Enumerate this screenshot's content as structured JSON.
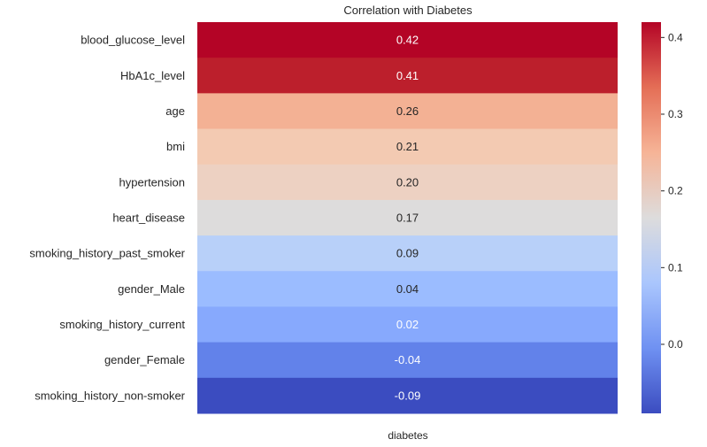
{
  "chart_data": {
    "type": "heatmap",
    "title": "Correlation with Diabetes",
    "xlabel": "",
    "ylabel": "",
    "columns": [
      "diabetes"
    ],
    "rows": [
      "blood_glucose_level",
      "HbA1c_level",
      "age",
      "bmi",
      "hypertension",
      "heart_disease",
      "smoking_history_past_smoker",
      "gender_Male",
      "smoking_history_current",
      "gender_Female",
      "smoking_history_non-smoker"
    ],
    "values": [
      0.42,
      0.41,
      0.26,
      0.21,
      0.2,
      0.17,
      0.09,
      0.04,
      0.02,
      -0.04,
      -0.09
    ],
    "value_labels": [
      "0.42",
      "0.41",
      "0.26",
      "0.21",
      "0.20",
      "0.17",
      "0.09",
      "0.04",
      "0.02",
      "-0.04",
      "-0.09"
    ],
    "colormap": "coolwarm",
    "colorbar": {
      "range": [
        -0.09,
        0.42
      ],
      "ticks": [
        0.0,
        0.1,
        0.2,
        0.3,
        0.4
      ],
      "tick_labels": [
        "0.0",
        "0.1",
        "0.2",
        "0.3",
        "0.4"
      ]
    },
    "cell_colors": [
      "#b40426",
      "#bc1f2c",
      "#f3b194",
      "#f3cab2",
      "#edd1c2",
      "#dddcdc",
      "#b8d0f9",
      "#9bbcff",
      "#87a9fd",
      "#6282ea",
      "#3b4cc0"
    ],
    "colorbar_stops": [
      "#3b4cc0",
      "#6f91f2",
      "#aac6fd",
      "#dddcdc",
      "#f6b497",
      "#e46e56",
      "#b40426"
    ],
    "light_text_color": "#ffffff",
    "dark_text_color": "#262626"
  }
}
